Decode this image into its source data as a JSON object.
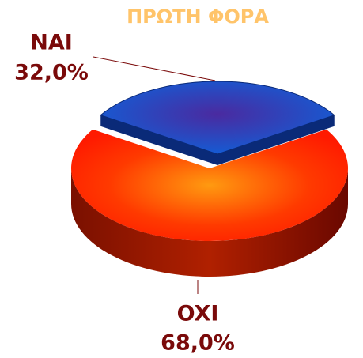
{
  "chart_data": {
    "type": "pie3d",
    "title": "ΠΡΩΤΗ ΦΟΡΑ",
    "categories": [
      "NAI",
      "OXI"
    ],
    "values": [
      32,
      68
    ],
    "value_labels": [
      "32,0%",
      "68,0%"
    ],
    "colors": [
      "#1a4fc4",
      "#ff2a00"
    ]
  }
}
